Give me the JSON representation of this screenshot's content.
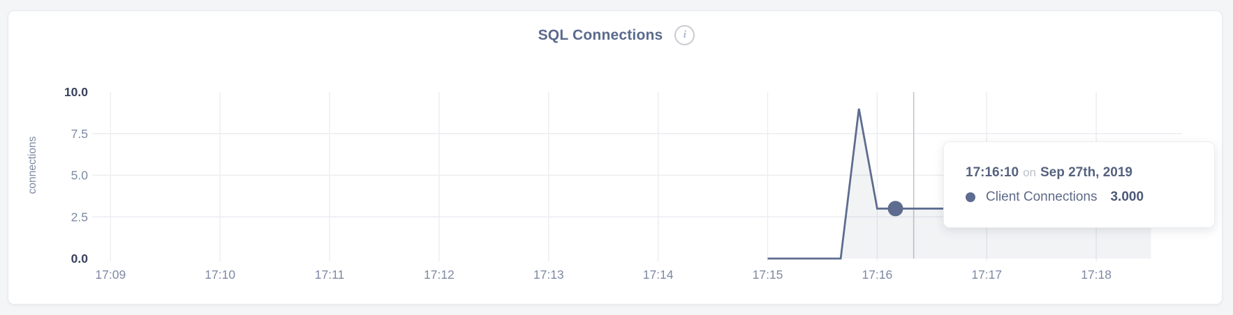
{
  "header": {
    "title": "SQL Connections",
    "info_glyph": "i"
  },
  "tooltip": {
    "time": "17:16:10",
    "on_word": "on",
    "date": "Sep 27th, 2019",
    "series_label": "Client Connections",
    "value": "3.000"
  },
  "colors": {
    "accent_line": "#5d6c8f",
    "area_fill": "rgba(99,112,144,0.085)",
    "gridline": "#ebedf0",
    "crosshair": "#c4c6cc",
    "tick_label": "#7d89a3",
    "tick_label_strong": "#39425e",
    "title_text": "#5a6a8c",
    "tooltip_text": "#56627e",
    "card_bg": "#ffffff",
    "page_bg": "#f4f5f6"
  },
  "chart_data": {
    "type": "area",
    "title": "SQL Connections",
    "xlabel": "",
    "ylabel": "connections",
    "ylim": [
      0,
      10
    ],
    "x_domain": [
      "17:08:53",
      "17:18:47"
    ],
    "grid": true,
    "legend_position": "none",
    "x_ticks": [
      {
        "t": "17:09:00",
        "label": "17:09"
      },
      {
        "t": "17:10:00",
        "label": "17:10"
      },
      {
        "t": "17:11:00",
        "label": "17:11"
      },
      {
        "t": "17:12:00",
        "label": "17:12"
      },
      {
        "t": "17:13:00",
        "label": "17:13"
      },
      {
        "t": "17:14:00",
        "label": "17:14"
      },
      {
        "t": "17:15:00",
        "label": "17:15"
      },
      {
        "t": "17:16:00",
        "label": "17:16"
      },
      {
        "t": "17:17:00",
        "label": "17:17"
      },
      {
        "t": "17:18:00",
        "label": "17:18"
      }
    ],
    "y_ticks": [
      {
        "v": 0,
        "label": "0.0",
        "strong": true
      },
      {
        "v": 2.5,
        "label": "2.5",
        "strong": false
      },
      {
        "v": 5,
        "label": "5.0",
        "strong": false
      },
      {
        "v": 7.5,
        "label": "7.5",
        "strong": false
      },
      {
        "v": 10,
        "label": "10.0",
        "strong": true
      }
    ],
    "series": [
      {
        "name": "Client Connections",
        "points": [
          {
            "t": "17:15:00",
            "v": 0
          },
          {
            "t": "17:15:10",
            "v": 0
          },
          {
            "t": "17:15:20",
            "v": 0
          },
          {
            "t": "17:15:30",
            "v": 0
          },
          {
            "t": "17:15:40",
            "v": 0
          },
          {
            "t": "17:15:50",
            "v": 9
          },
          {
            "t": "17:16:00",
            "v": 3
          },
          {
            "t": "17:16:10",
            "v": 3
          },
          {
            "t": "17:16:20",
            "v": 3
          },
          {
            "t": "17:16:30",
            "v": 3
          },
          {
            "t": "17:16:40",
            "v": 3
          },
          {
            "t": "17:16:50",
            "v": 3
          },
          {
            "t": "17:17:00",
            "v": 3
          },
          {
            "t": "17:17:10",
            "v": 3
          },
          {
            "t": "17:17:20",
            "v": 3
          },
          {
            "t": "17:17:30",
            "v": 3
          },
          {
            "t": "17:17:40",
            "v": 3
          },
          {
            "t": "17:17:50",
            "v": 3
          },
          {
            "t": "17:18:00",
            "v": 3
          },
          {
            "t": "17:18:10",
            "v": 3
          },
          {
            "t": "17:18:20",
            "v": 3
          },
          {
            "t": "17:18:30",
            "v": 3
          }
        ]
      }
    ],
    "highlight_point": {
      "t": "17:16:10",
      "v": 3,
      "series": "Client Connections"
    },
    "crosshair_t": "17:16:20"
  }
}
